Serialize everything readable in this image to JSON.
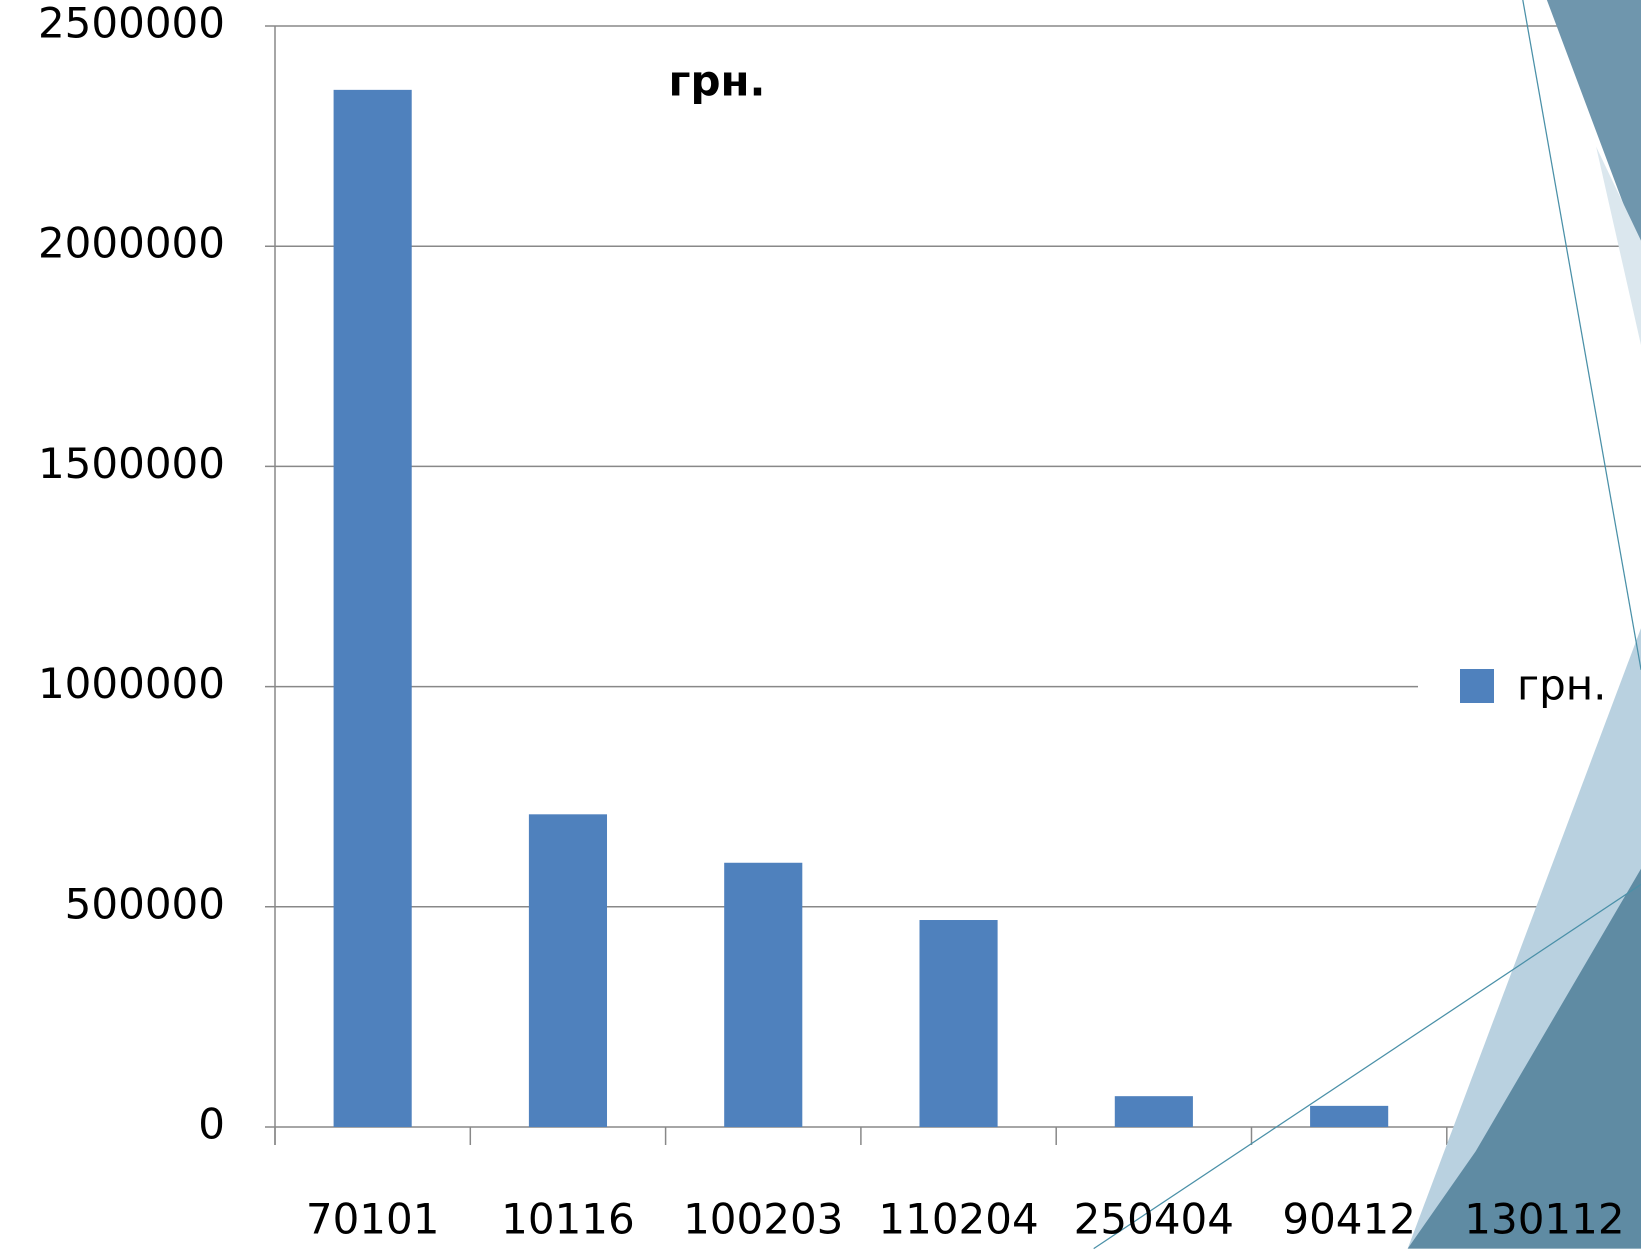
{
  "chart_data": {
    "type": "bar",
    "title": "грн.",
    "categories": [
      "70101",
      "10116",
      "100203",
      "110204",
      "250404",
      "90412",
      "130112"
    ],
    "series": [
      {
        "name": "грн.",
        "color": "#4f81bd",
        "values": [
          2355000,
          710000,
          600000,
          470000,
          70000,
          48000,
          20000
        ]
      }
    ],
    "ylim": [
      0,
      2500000
    ],
    "yticks": [
      0,
      500000,
      1000000,
      1500000,
      2000000,
      2500000
    ],
    "grid": true,
    "legend": "right"
  }
}
